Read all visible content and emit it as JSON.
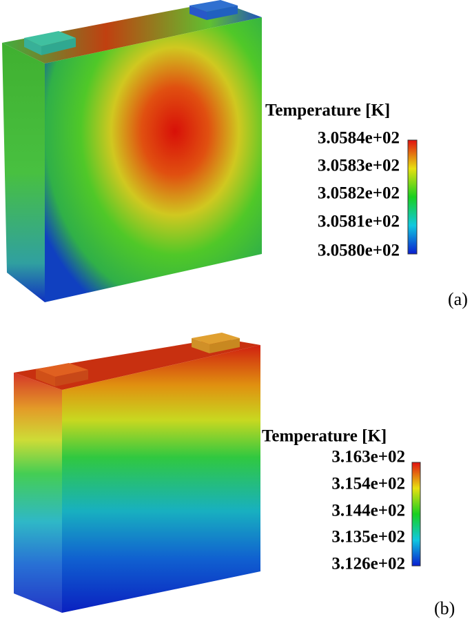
{
  "panels": [
    {
      "label": "(a)",
      "legend": {
        "title": "Temperature [K]",
        "ticks": [
          "3.0584e+02",
          "3.0583e+02",
          "3.0582e+02",
          "3.0581e+02",
          "3.0580e+02"
        ]
      }
    },
    {
      "label": "(b)",
      "legend": {
        "title": "Temperature [K]",
        "ticks": [
          "3.163e+02",
          "3.154e+02",
          "3.144e+02",
          "3.135e+02",
          "3.126e+02"
        ]
      }
    }
  ]
}
